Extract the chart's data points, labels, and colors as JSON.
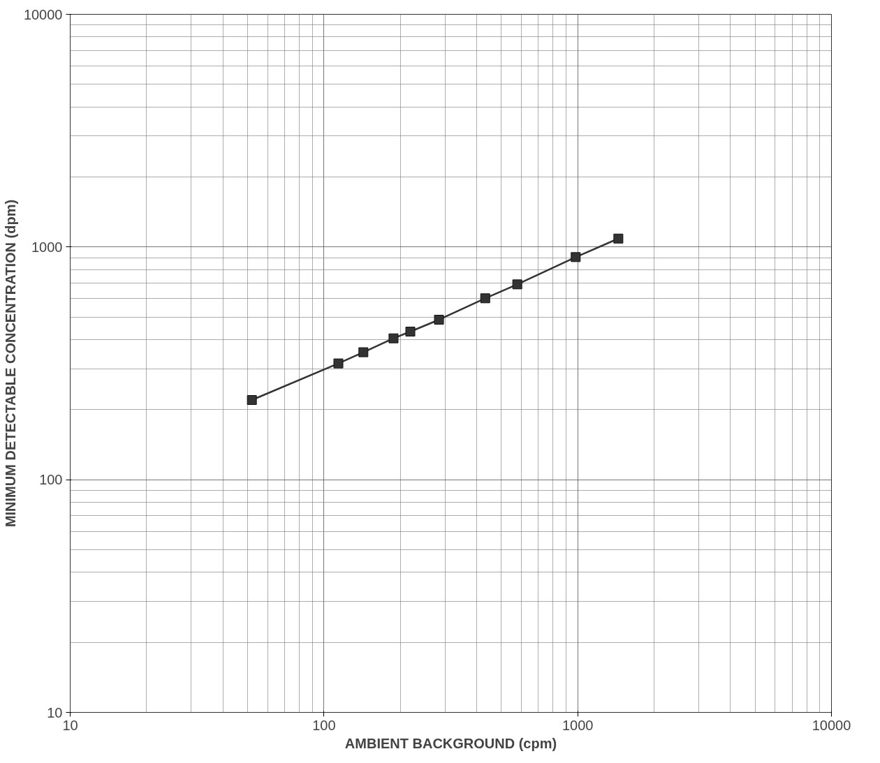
{
  "chart_data": {
    "type": "line",
    "xlabel": "AMBIENT BACKGROUND (cpm)",
    "ylabel": "MINIMUM DETECTABLE CONCENTRATION (dpm)",
    "log": "xy",
    "xlim": [
      10,
      10000
    ],
    "ylim": [
      10,
      10000
    ],
    "xticks": [
      10,
      100,
      1000,
      10000
    ],
    "yticks": [
      10,
      100,
      1000,
      10000
    ],
    "grid": true,
    "marker": "square",
    "line_style": "solid",
    "x": [
      52,
      114,
      143,
      188,
      219,
      284,
      432,
      578,
      982,
      1446
    ],
    "series": [
      {
        "color": "#333333",
        "values": [
          220,
          316,
          353,
          405,
          433,
          487,
          602,
          691,
          905,
          1087
        ]
      }
    ]
  }
}
